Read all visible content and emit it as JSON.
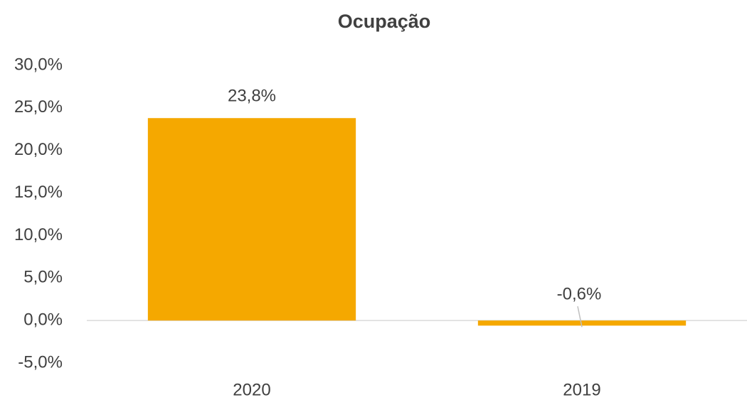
{
  "chart_data": {
    "type": "bar",
    "title": "Ocupação",
    "categories": [
      "2020",
      "2019"
    ],
    "values": [
      23.8,
      -0.6
    ],
    "value_labels": [
      "23,8%",
      "-0,6%"
    ],
    "color": "#f5a800",
    "ylim": [
      -5,
      30
    ],
    "yticks": [
      {
        "value": -5,
        "label": "-5,0%"
      },
      {
        "value": 0,
        "label": "0,0%"
      },
      {
        "value": 5,
        "label": "5,0%"
      },
      {
        "value": 10,
        "label": "10,0%"
      },
      {
        "value": 15,
        "label": "15,0%"
      },
      {
        "value": 20,
        "label": "20,0%"
      },
      {
        "value": 25,
        "label": "25,0%"
      },
      {
        "value": 30,
        "label": "30,0%"
      }
    ],
    "grid": false
  }
}
